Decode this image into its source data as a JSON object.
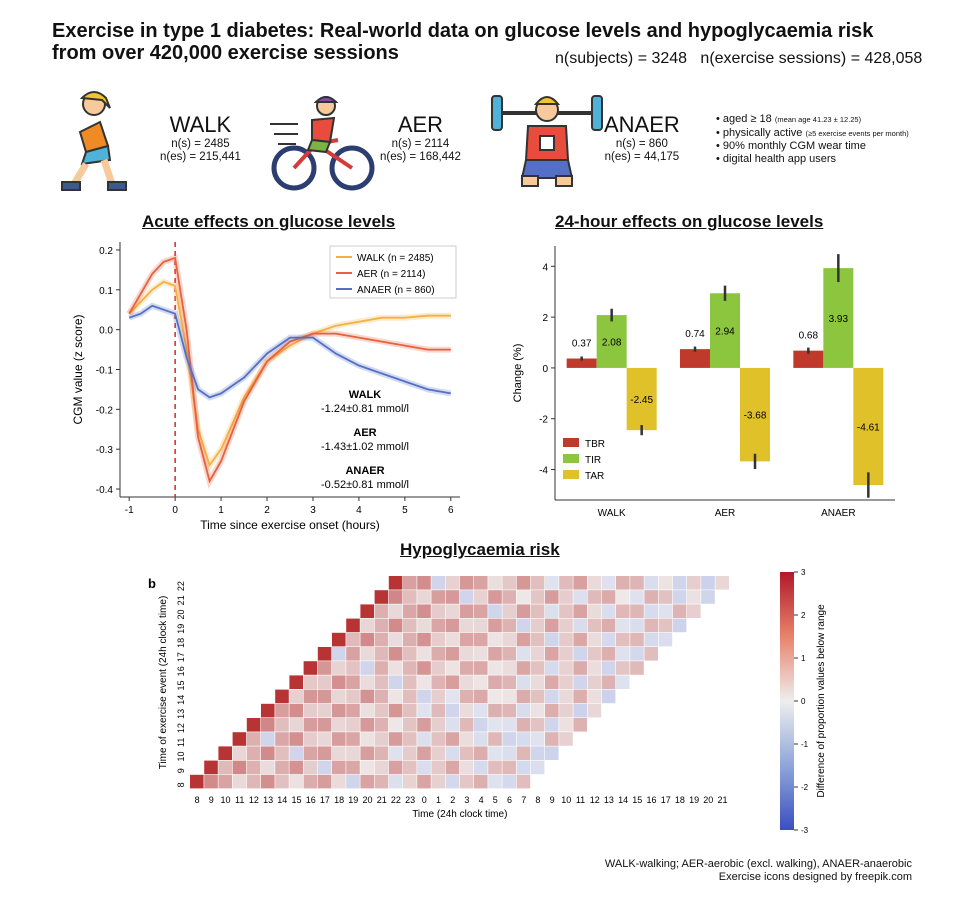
{
  "header": {
    "title_line1": "Exercise in type 1 diabetes: Real-world data on glucose levels and hypoglycaemia risk",
    "title_line2": "from over 420,000 exercise sessions",
    "n_subjects": "n(subjects) = 3248",
    "n_sessions": "n(exercise sessions) = 428,058"
  },
  "groups": [
    {
      "name": "WALK",
      "n_s": "n(s) = 2485",
      "n_es": "n(es) = 215,441",
      "icon": "walking-person-icon"
    },
    {
      "name": "AER",
      "n_s": "n(s) = 2114",
      "n_es": "n(es) = 168,442",
      "icon": "cyclist-icon"
    },
    {
      "name": "ANAER",
      "n_s": "n(s) = 860",
      "n_es": "n(es) = 44,175",
      "icon": "weightlifter-icon"
    }
  ],
  "notes": [
    {
      "main": "• aged ≥ 18",
      "small": "(mean age 41.23 ± 12.25)"
    },
    {
      "main": "• physically active",
      "small": "(≥5 exercise events per month)"
    },
    {
      "main": "• 90% monthly CGM wear time",
      "small": ""
    },
    {
      "main": "• digital health app users",
      "small": ""
    }
  ],
  "sections": {
    "acute": "Acute effects on glucose levels",
    "day": "24-hour effects on glucose levels",
    "hypo": "Hypoglycaemia risk"
  },
  "footer": {
    "line1": "WALK-walking; AER-aerobic (excl. walking), ANAER-anaerobic",
    "line2": "Exercise icons designed by freepik.com"
  },
  "colors": {
    "walk": "#f5b041",
    "aer": "#e8603c",
    "anaer": "#5470c6",
    "tbr": "#c0392b",
    "tir": "#8cc63f",
    "tar": "#e0c12a"
  },
  "chart_data": [
    {
      "type": "line",
      "xlabel": "Time since exercise onset (hours)",
      "ylabel": "CGM value (z score)",
      "xlim": [
        -1.2,
        6.2
      ],
      "ylim": [
        -0.42,
        0.22
      ],
      "xticks": [
        -1,
        0,
        1,
        2,
        3,
        4,
        5,
        6
      ],
      "yticks": [
        0.2,
        0.1,
        0.0,
        -0.1,
        -0.2,
        -0.3,
        -0.4
      ],
      "legend": "top-right",
      "series": [
        {
          "name": "WALK (n = 2485)",
          "key": "walk",
          "x": [
            -1,
            -0.75,
            -0.5,
            -0.25,
            0,
            0.25,
            0.5,
            0.75,
            1,
            1.5,
            2,
            2.5,
            3,
            3.5,
            4,
            4.5,
            5,
            5.5,
            6
          ],
          "y": [
            0.04,
            0.07,
            0.1,
            0.12,
            0.11,
            -0.05,
            -0.25,
            -0.34,
            -0.3,
            -0.17,
            -0.08,
            -0.04,
            -0.01,
            0.01,
            0.02,
            0.03,
            0.03,
            0.035,
            0.035
          ]
        },
        {
          "name": "AER (n = 2114)",
          "key": "aer",
          "x": [
            -1,
            -0.75,
            -0.5,
            -0.25,
            0,
            0.25,
            0.5,
            0.75,
            1,
            1.5,
            2,
            2.5,
            3,
            3.5,
            4,
            4.5,
            5,
            5.5,
            6
          ],
          "y": [
            0.04,
            0.09,
            0.14,
            0.17,
            0.18,
            0.0,
            -0.27,
            -0.38,
            -0.33,
            -0.18,
            -0.08,
            -0.03,
            -0.01,
            -0.01,
            -0.02,
            -0.03,
            -0.04,
            -0.05,
            -0.05
          ]
        },
        {
          "name": "ANAER (n = 860)",
          "key": "anaer",
          "x": [
            -1,
            -0.75,
            -0.5,
            -0.25,
            0,
            0.25,
            0.5,
            0.75,
            1,
            1.5,
            2,
            2.5,
            3,
            3.5,
            4,
            4.5,
            5,
            5.5,
            6
          ],
          "y": [
            0.03,
            0.04,
            0.06,
            0.05,
            0.04,
            -0.07,
            -0.15,
            -0.17,
            -0.16,
            -0.12,
            -0.06,
            -0.02,
            -0.02,
            -0.06,
            -0.09,
            -0.11,
            -0.13,
            -0.15,
            -0.16
          ]
        }
      ],
      "annotations": [
        {
          "label": "WALK",
          "value": "-1.24±0.81 mmol/l"
        },
        {
          "label": "AER",
          "value": "-1.43±1.02 mmol/l"
        },
        {
          "label": "ANAER",
          "value": "-0.52±0.81 mmol/l"
        }
      ]
    },
    {
      "type": "bar",
      "ylabel": "Change (%)",
      "ylim": [
        -5.2,
        4.8
      ],
      "yticks": [
        4,
        2,
        0,
        -2,
        -4
      ],
      "categories": [
        "WALK",
        "AER",
        "ANAER"
      ],
      "legend": "bottom-left",
      "series": [
        {
          "name": "TBR",
          "key": "tbr",
          "values": [
            0.37,
            0.74,
            0.68
          ],
          "err": [
            0.08,
            0.1,
            0.12
          ]
        },
        {
          "name": "TIR",
          "key": "tir",
          "values": [
            2.08,
            2.94,
            3.93
          ],
          "err": [
            0.25,
            0.3,
            0.55
          ]
        },
        {
          "name": "TAR",
          "key": "tar",
          "values": [
            -2.45,
            -3.68,
            -4.61
          ],
          "err": [
            0.2,
            0.3,
            0.5
          ]
        }
      ],
      "labels": [
        [
          "0.37",
          "2.08",
          "-2.45"
        ],
        [
          "0.74",
          "2.94",
          "-3.68"
        ],
        [
          "0.68",
          "3.93",
          "-4.61"
        ]
      ]
    },
    {
      "type": "heatmap",
      "panel_label": "b",
      "xlabel": "Time (24h clock time)",
      "ylabel": "Time of exercise event (24h clock time)",
      "xticks": [
        "8",
        "9",
        "10",
        "11",
        "12",
        "13",
        "14",
        "15",
        "16",
        "17",
        "18",
        "19",
        "20",
        "21",
        "22",
        "23",
        "0",
        "1",
        "2",
        "3",
        "4",
        "5",
        "6",
        "7",
        "8",
        "9",
        "10",
        "11",
        "12",
        "13",
        "14",
        "15",
        "16",
        "17",
        "18",
        "19",
        "20",
        "21"
      ],
      "yticks": [
        "22",
        "21",
        "20",
        "19",
        "18",
        "17",
        "16",
        "15",
        "14",
        "13",
        "12",
        "11",
        "10",
        "9",
        "8"
      ],
      "colorbar_label": "Difference of proportion values below range",
      "colorbar_range": [
        -3,
        3
      ],
      "colorbar_ticks": [
        "3",
        "2",
        "1",
        "0",
        "-1",
        "-2",
        "-3"
      ]
    }
  ]
}
